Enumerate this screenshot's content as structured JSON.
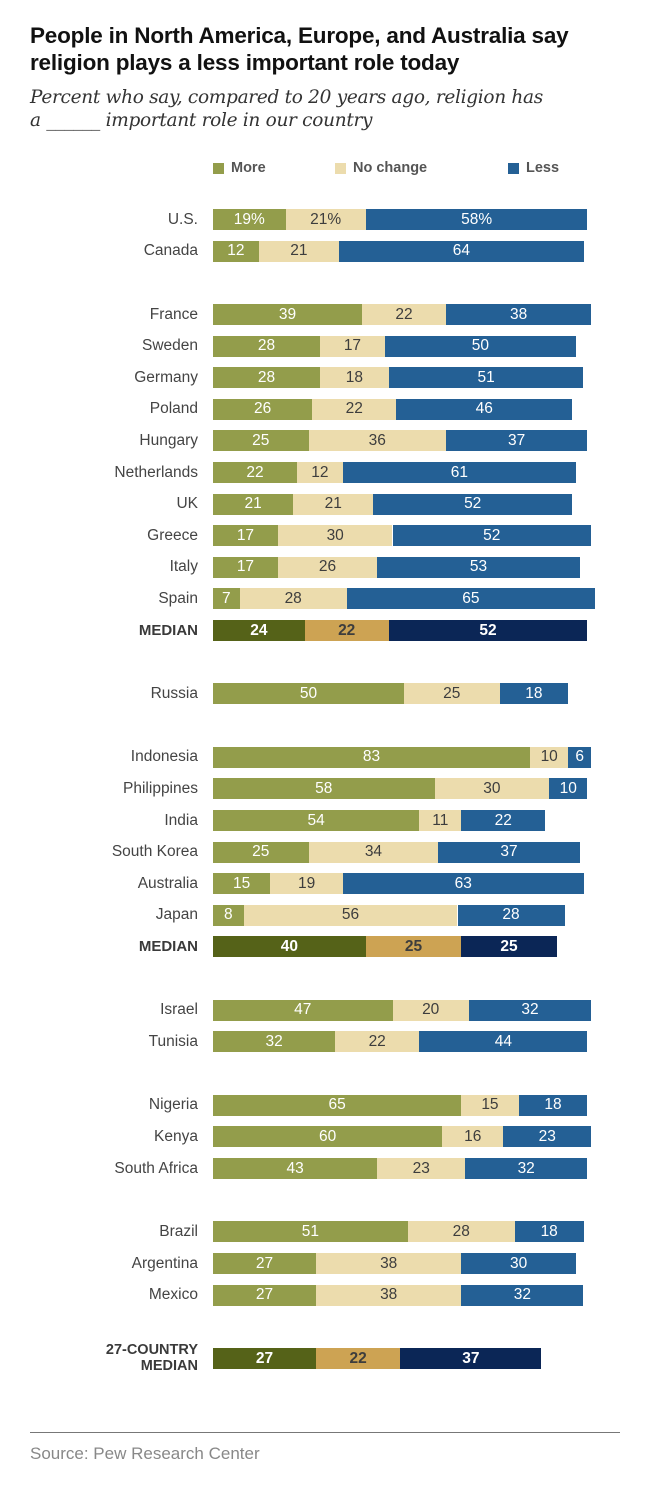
{
  "title": "People in North America, Europe, and Australia say religion plays a less important role today",
  "subtitle_line1": "Percent who say, compared to 20 years ago, religion has",
  "subtitle_line2": "a ______ important role in our country",
  "source": "Source: Pew Research Center",
  "colors": {
    "more": "#939d4b",
    "no_change": "#ecdcad",
    "less": "#246095",
    "median_more": "#556218",
    "median_no_change": "#cda353",
    "median_less": "#0b2656",
    "label_light": "#ffffff",
    "label_dark": "#3d3d3d"
  },
  "chart_data": {
    "type": "bar",
    "orientation": "horizontal",
    "stacked": true,
    "title": "People in North America, Europe, and Australia say religion plays a less important role today",
    "subtitle": "Percent who say, compared to 20 years ago, religion has a ______ important role in our country",
    "xlabel": "",
    "ylabel": "",
    "xlim": [
      0,
      100
    ],
    "grid": false,
    "legend": {
      "placement": "top",
      "entries": [
        "More",
        "No change",
        "Less"
      ]
    },
    "series": [
      {
        "key": "more",
        "name": "More"
      },
      {
        "key": "no_change",
        "name": "No change"
      },
      {
        "key": "less",
        "name": "Less"
      }
    ],
    "groups": [
      {
        "rows": [
          {
            "label": "U.S.",
            "values": [
              19,
              21,
              58
            ],
            "labels": [
              "19%",
              "21%",
              "58%"
            ]
          },
          {
            "label": "Canada",
            "values": [
              12,
              21,
              64
            ]
          }
        ]
      },
      {
        "rows": [
          {
            "label": "France",
            "values": [
              39,
              22,
              38
            ]
          },
          {
            "label": "Sweden",
            "values": [
              28,
              17,
              50
            ]
          },
          {
            "label": "Germany",
            "values": [
              28,
              18,
              51
            ]
          },
          {
            "label": "Poland",
            "values": [
              26,
              22,
              46
            ]
          },
          {
            "label": "Hungary",
            "values": [
              25,
              36,
              37
            ]
          },
          {
            "label": "Netherlands",
            "values": [
              22,
              12,
              61
            ]
          },
          {
            "label": "UK",
            "values": [
              21,
              21,
              52
            ]
          },
          {
            "label": "Greece",
            "values": [
              17,
              30,
              52
            ]
          },
          {
            "label": "Italy",
            "values": [
              17,
              26,
              53
            ]
          },
          {
            "label": "Spain",
            "values": [
              7,
              28,
              65
            ]
          },
          {
            "label": "MEDIAN",
            "values": [
              24,
              22,
              52
            ],
            "median": true
          }
        ]
      },
      {
        "rows": [
          {
            "label": "Russia",
            "values": [
              50,
              25,
              18
            ]
          }
        ]
      },
      {
        "rows": [
          {
            "label": "Indonesia",
            "values": [
              83,
              10,
              6
            ]
          },
          {
            "label": "Philippines",
            "values": [
              58,
              30,
              10
            ]
          },
          {
            "label": "India",
            "values": [
              54,
              11,
              22
            ]
          },
          {
            "label": "South Korea",
            "values": [
              25,
              34,
              37
            ]
          },
          {
            "label": "Australia",
            "values": [
              15,
              19,
              63
            ]
          },
          {
            "label": "Japan",
            "values": [
              8,
              56,
              28
            ]
          },
          {
            "label": "MEDIAN",
            "values": [
              40,
              25,
              25
            ],
            "median": true
          }
        ]
      },
      {
        "rows": [
          {
            "label": "Israel",
            "values": [
              47,
              20,
              32
            ]
          },
          {
            "label": "Tunisia",
            "values": [
              32,
              22,
              44
            ]
          }
        ]
      },
      {
        "rows": [
          {
            "label": "Nigeria",
            "values": [
              65,
              15,
              18
            ]
          },
          {
            "label": "Kenya",
            "values": [
              60,
              16,
              23
            ]
          },
          {
            "label": "South Africa",
            "values": [
              43,
              23,
              32
            ]
          }
        ]
      },
      {
        "rows": [
          {
            "label": "Brazil",
            "values": [
              51,
              28,
              18
            ]
          },
          {
            "label": "Argentina",
            "values": [
              27,
              38,
              30
            ]
          },
          {
            "label": "Mexico",
            "values": [
              27,
              38,
              32
            ]
          }
        ]
      },
      {
        "rows": [
          {
            "label": "27-COUNTRY MEDIAN",
            "label_lines": [
              "27-COUNTRY",
              "MEDIAN"
            ],
            "values": [
              27,
              22,
              37
            ],
            "median": true
          }
        ]
      }
    ]
  }
}
